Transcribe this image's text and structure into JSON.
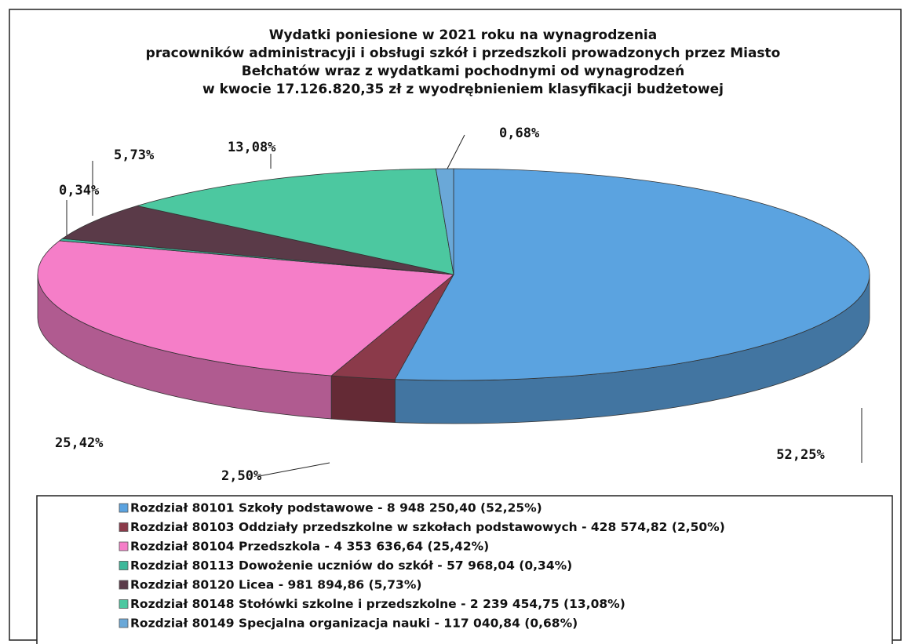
{
  "chart_data": {
    "type": "pie",
    "title": [
      "Wydatki poniesione w 2021 roku na wynagrodzenia",
      "pracowników administracyji i obsługi szkół i przedszkoli prowadzonych przez Miasto",
      "Bełchatów wraz z wydatkami pochodnymi od wynagrodzeń",
      "w kwocie 17.126.820,35 zł z wyodrębnieniem klasyfikacji budżetowej"
    ],
    "categories": [
      "Rozdział 80101 Szkoły podstawowe - 8 948 250,40 (52,25%)",
      "Rozdział 80103 Oddziały przedszkolne w szkołach podstawowych - 428 574,82 (2,50%)",
      "Rozdział 80104 Przedszkola - 4 353 636,64 (25,42%)",
      "Rozdział 80113 Dowożenie uczniów do szkół - 57 968,04 (0,34%)",
      "Rozdział 80120 Licea - 981 894,86 (5,73%)",
      "Rozdział 80148 Stołówki szkolne i przedszkolne - 2 239 454,75 (13,08%)",
      "Rozdział 80149 Specjalna organizacja nauki - 117 040,84 (0,68%)"
    ],
    "values": [
      52.25,
      2.5,
      25.42,
      0.34,
      5.73,
      13.08,
      0.68
    ],
    "value_labels": [
      "52,25%",
      "2,50%",
      "25,42%",
      "0,34%",
      "5,73%",
      "13,08%",
      "0,68%"
    ],
    "colors": [
      "#5ba3e0",
      "#8b3a4a",
      "#f57ec8",
      "#3cb89a",
      "#5a3a48",
      "#4cc8a0",
      "#6aa8d8"
    ]
  }
}
